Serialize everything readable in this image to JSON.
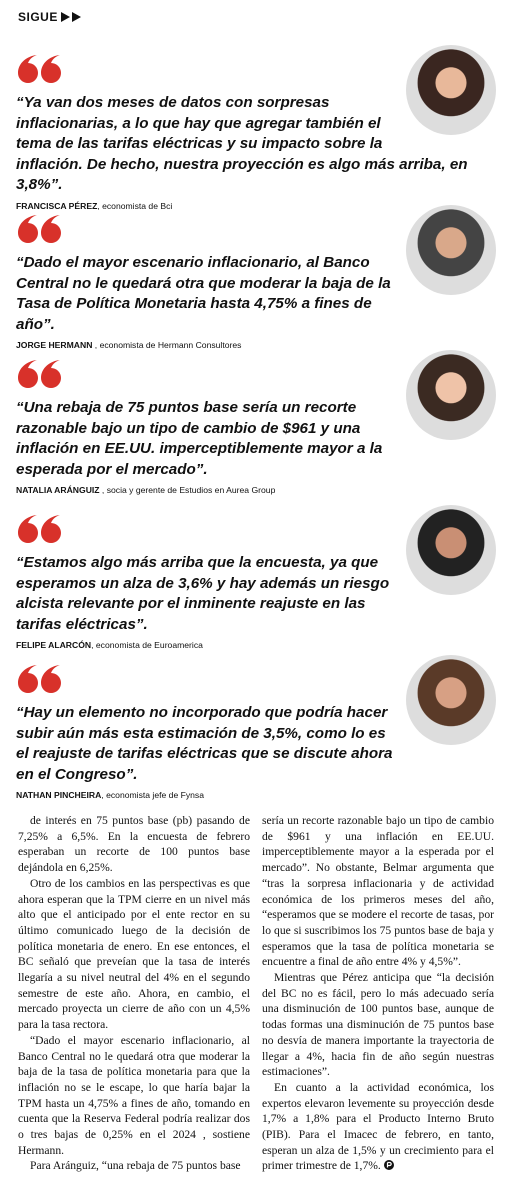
{
  "header": {
    "label": "SIGUE"
  },
  "quotes": [
    {
      "text": "“Ya van dos meses de datos con sorpresas inflacionarias, a lo que hay que agregar también el tema de las tarifas eléctricas y su impacto sobre la inflación. De hecho, nuestra proyección es algo más arriba, en 3,8%”.",
      "name": "FRANCISCA PÉREZ",
      "role": ", economista de Bci"
    },
    {
      "text": "“Dado el mayor escenario inflacionario, al Banco Central no le quedará otra que moderar la baja de la Tasa de Política Monetaria hasta 4,75% a fines de año”.",
      "name": "JORGE HERMANN",
      "role": " , economista de Hermann Consultores"
    },
    {
      "text": "“Una rebaja de 75 puntos base sería un recorte razonable bajo un tipo de cambio de $961 y una inflación en EE.UU. imperceptiblemente mayor a la esperada por el mercado”.",
      "name": "NATALIA ARÁNGUIZ",
      "role": " , socia y gerente de Estudios en Aurea Group"
    },
    {
      "text": "“Estamos algo más arriba que la encuesta, ya que esperamos un alza de 3,6% y hay además un riesgo alcista relevante por el inminente reajuste en las tarifas eléctricas”.",
      "name": "FELIPE ALARCÓN",
      "role": ", economista de Euroamerica"
    },
    {
      "text": "“Hay un elemento no incorporado que podría hacer subir aún más esta estimación de 3,5%, como lo es el reajuste de tarifas eléctricas que se discute ahora en el Congreso”.",
      "name": "NATHAN PINCHEIRA",
      "role": ", economista jefe de Fynsa"
    }
  ],
  "body": {
    "columns": [
      [
        "de interés en 75 puntos base (pb) pasando de 7,25% a 6,5%. En la encuesta de febrero esperaban un recorte de 100 puntos base dejándola en 6,25%.",
        "Otro de los cambios en las perspectivas es que ahora esperan que la TPM cierre en un nivel más alto que el anticipado por el ente rector en su último comunicado luego de la decisión de política monetaria de enero. En ese entonces, el BC señaló que preveían que la tasa de interés llegaría a su nivel neutral del 4% en el segundo semestre de este año. Ahora, en cambio, el mercado proyecta un cierre de año con un 4,5% para la tasa rectora.",
        "“Dado el mayor escenario inflacionario, al Banco Central no le quedará otra que moderar la baja de la tasa de política monetaria para que la inflación no se le escape, lo que haría bajar la TPM hasta un 4,75% a fines de año, tomando en cuenta que la Reserva Federal podría realizar dos o tres bajas de 0,25% en el 2024 , sostiene Hermann.",
        "Para Aránguiz, “una rebaja de 75 puntos base"
      ],
      [
        "sería un recorte razonable bajo un tipo de cambio de $961 y una inflación en EE.UU. imperceptiblemente mayor a la esperada por el mercado”. No obstante, Belmar argumenta que “tras la sorpresa inflacionaria y de actividad económica de los primeros meses del año, “esperamos que se modere el recorte de tasas, por lo que si suscribimos los 75 puntos base de baja y esperamos que la tasa de política monetaria se encuentre a final de año entre 4% y 4,5%”.",
        "Mientras que Pérez anticipa que “la decisión del BC no es fácil, pero lo más adecuado sería una disminución de 100 puntos base, aunque de todas formas una disminución de 75 puntos base no desvía de manera importante la trayectoria de llegar a 4%, hacia fin de año según nuestras estimaciones”.",
        "En cuanto a la actividad económica, los expertos elevaron levemente su proyección desde 1,7% a 1,8% para el Producto Interno Bruto (PIB). Para el Imacec de febrero, en tanto, esperan un alza de 1,5% y un crecimiento para el primer trimestre de 1,7%."
      ]
    ]
  }
}
